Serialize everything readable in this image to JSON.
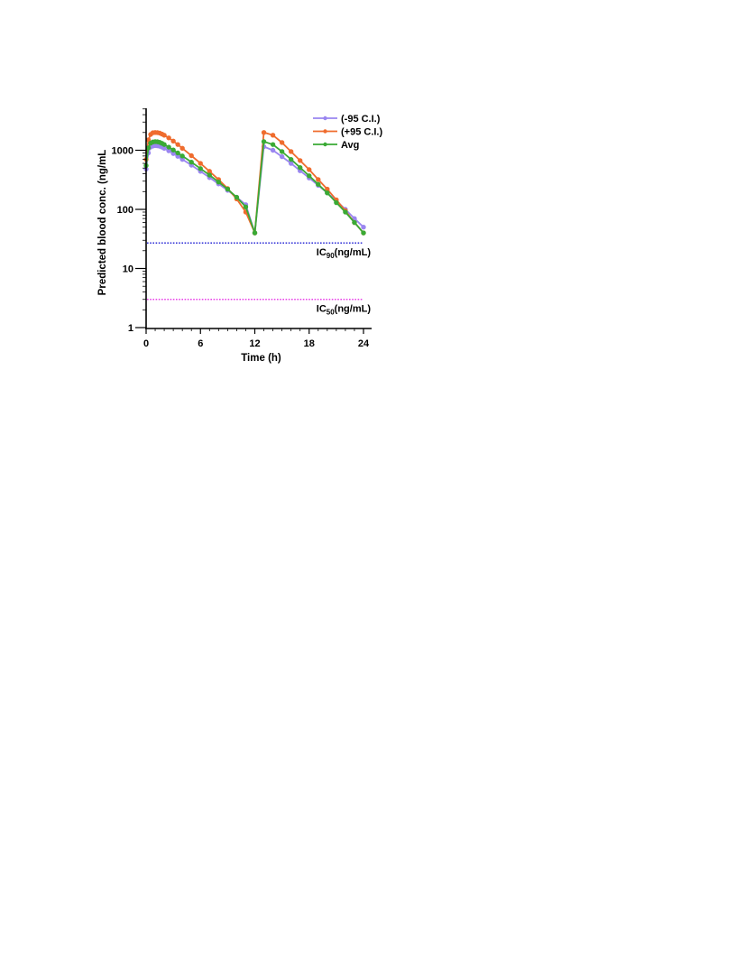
{
  "chart_data": {
    "type": "line",
    "xlabel": "Time (h)",
    "ylabel": "Predicted blood conc. (ng/mL",
    "y_scale": "log",
    "xlim": [
      0,
      24
    ],
    "ylim": [
      1,
      5000
    ],
    "x_ticks": [
      0,
      6,
      12,
      18,
      24
    ],
    "x_tick_labels": [
      "0",
      "6",
      "12",
      "18",
      "24"
    ],
    "y_ticks": [
      1,
      10,
      100,
      1000
    ],
    "y_tick_labels": [
      "1",
      "10",
      "100",
      "1000"
    ],
    "grid": false,
    "legend_position": "top-right",
    "series": [
      {
        "name": "(-95 C.I.)",
        "color": "#9a86f0",
        "x": [
          0,
          0.25,
          0.5,
          0.75,
          1,
          1.25,
          1.5,
          1.75,
          2,
          2.5,
          3,
          3.5,
          4,
          5,
          6,
          7,
          8,
          9,
          10,
          11,
          12,
          13,
          14,
          15,
          16,
          17,
          18,
          19,
          20,
          21,
          22,
          23,
          24
        ],
        "y": [
          480,
          900,
          1130,
          1180,
          1200,
          1190,
          1170,
          1130,
          1080,
          980,
          880,
          790,
          700,
          560,
          440,
          345,
          270,
          210,
          160,
          120,
          40,
          1150,
          1000,
          780,
          600,
          450,
          340,
          255,
          190,
          140,
          100,
          70,
          50
        ]
      },
      {
        "name": "(+95 C.I.)",
        "color": "#ef6c2e",
        "x": [
          0,
          0.25,
          0.5,
          0.75,
          1,
          1.25,
          1.5,
          1.75,
          2,
          2.5,
          3,
          3.5,
          4,
          5,
          6,
          7,
          8,
          9,
          10,
          11,
          12,
          13,
          14,
          15,
          16,
          17,
          18,
          19,
          20,
          21,
          22,
          23,
          24
        ],
        "y": [
          700,
          1500,
          1850,
          1980,
          2000,
          1990,
          1950,
          1880,
          1800,
          1620,
          1430,
          1250,
          1080,
          810,
          600,
          440,
          320,
          225,
          150,
          90,
          40,
          2000,
          1800,
          1350,
          950,
          670,
          470,
          320,
          220,
          145,
          95,
          60,
          40
        ]
      },
      {
        "name": "Avg",
        "color": "#3aaa35",
        "x": [
          0,
          0.25,
          0.5,
          0.75,
          1,
          1.25,
          1.5,
          1.75,
          2,
          2.5,
          3,
          3.5,
          4,
          5,
          6,
          7,
          8,
          9,
          10,
          11,
          12,
          13,
          14,
          15,
          16,
          17,
          18,
          19,
          20,
          21,
          22,
          23,
          24
        ],
        "y": [
          550,
          1100,
          1320,
          1380,
          1400,
          1390,
          1360,
          1310,
          1250,
          1130,
          1010,
          900,
          800,
          630,
          490,
          380,
          290,
          220,
          160,
          110,
          40,
          1400,
          1250,
          950,
          700,
          510,
          370,
          265,
          190,
          130,
          90,
          60,
          40
        ]
      }
    ],
    "reference_lines": [
      {
        "label_main": "IC",
        "label_sub": "90",
        "label_tail": "(ng/mL)",
        "value": 27,
        "color": "#2b2bd6"
      },
      {
        "label_main": "IC",
        "label_sub": "50",
        "label_tail": "(ng/mL)",
        "value": 3,
        "color": "#e83fe8"
      }
    ]
  }
}
